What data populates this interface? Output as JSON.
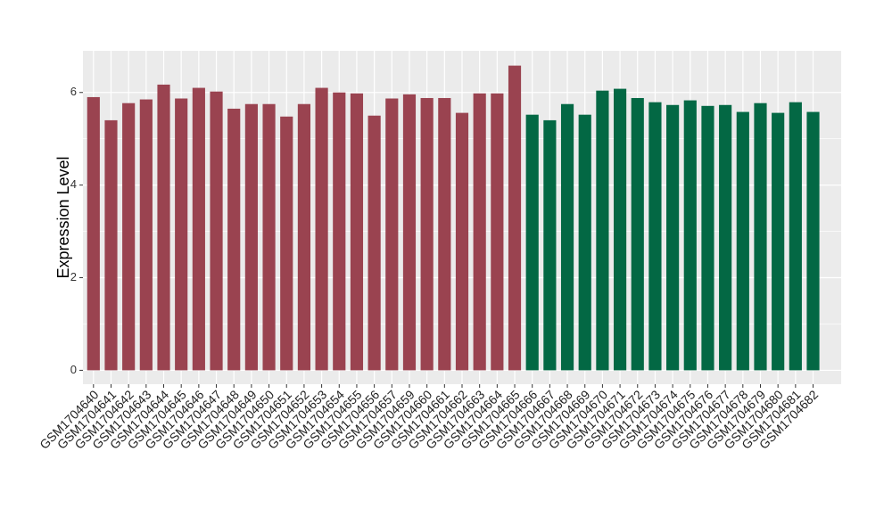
{
  "chart_data": {
    "type": "bar",
    "y_label": "Expression Level",
    "categories": [
      "GSM1704640",
      "GSM1704641",
      "GSM1704642",
      "GSM1704643",
      "GSM1704644",
      "GSM1704645",
      "GSM1704646",
      "GSM1704647",
      "GSM1704648",
      "GSM1704649",
      "GSM1704650",
      "GSM1704651",
      "GSM1704652",
      "GSM1704653",
      "GSM1704654",
      "GSM1704655",
      "GSM1704656",
      "GSM1704657",
      "GSM1704659",
      "GSM1704660",
      "GSM1704661",
      "GSM1704662",
      "GSM1704663",
      "GSM1704664",
      "GSM1704665",
      "GSM1704666",
      "GSM1704667",
      "GSM1704668",
      "GSM1704669",
      "GSM1704670",
      "GSM1704671",
      "GSM1704672",
      "GSM1704673",
      "GSM1704674",
      "GSM1704675",
      "GSM1704676",
      "GSM1704677",
      "GSM1704678",
      "GSM1704679",
      "GSM1704680",
      "GSM1704681",
      "GSM1704682"
    ],
    "values": [
      5.9,
      5.4,
      5.77,
      5.85,
      6.17,
      5.87,
      6.1,
      6.02,
      5.65,
      5.75,
      5.75,
      5.48,
      5.75,
      6.1,
      6.0,
      5.98,
      5.5,
      5.87,
      5.96,
      5.88,
      5.88,
      5.56,
      5.98,
      5.98,
      6.58,
      5.52,
      5.4,
      5.75,
      5.52,
      6.04,
      6.08,
      5.88,
      5.79,
      5.73,
      5.83,
      5.71,
      5.73,
      5.58,
      5.77,
      5.56,
      5.79,
      5.58
    ],
    "colors": [
      "#9a4350",
      "#9a4350",
      "#9a4350",
      "#9a4350",
      "#9a4350",
      "#9a4350",
      "#9a4350",
      "#9a4350",
      "#9a4350",
      "#9a4350",
      "#9a4350",
      "#9a4350",
      "#9a4350",
      "#9a4350",
      "#9a4350",
      "#9a4350",
      "#9a4350",
      "#9a4350",
      "#9a4350",
      "#9a4350",
      "#9a4350",
      "#9a4350",
      "#9a4350",
      "#9a4350",
      "#9a4350",
      "#036844",
      "#036844",
      "#036844",
      "#036844",
      "#036844",
      "#036844",
      "#036844",
      "#036844",
      "#036844",
      "#036844",
      "#036844",
      "#036844",
      "#036844",
      "#036844",
      "#036844",
      "#036844",
      "#036844"
    ],
    "ylim": [
      -0.3,
      6.9
    ],
    "yticks": [
      0,
      2,
      4,
      6
    ],
    "y_minor_ticks": [
      1,
      3,
      5
    ],
    "grid": true
  }
}
